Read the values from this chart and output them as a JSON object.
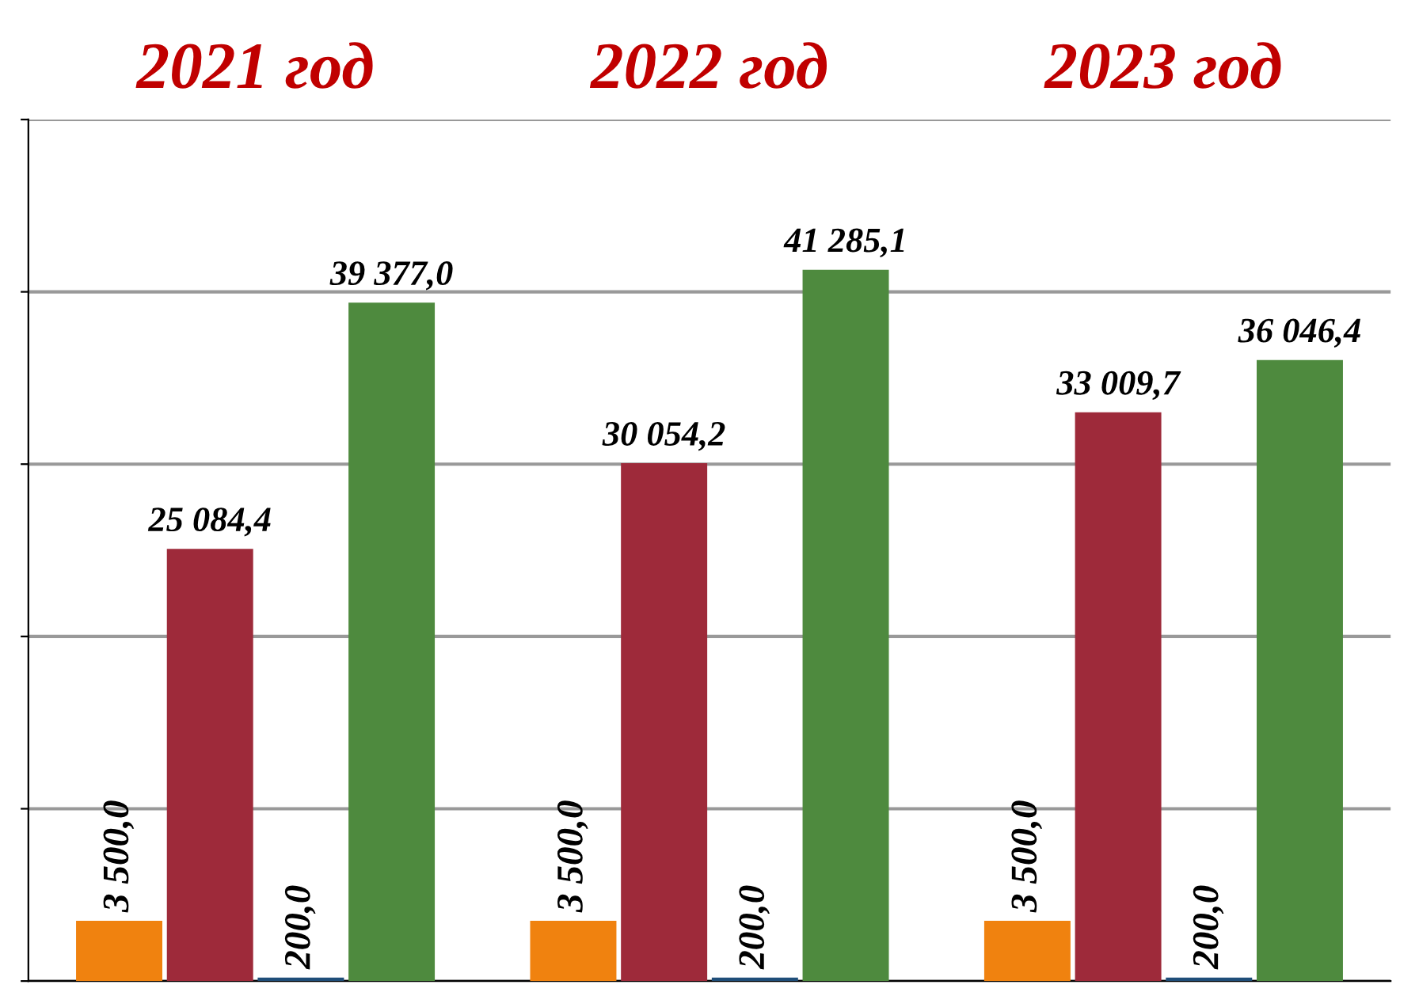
{
  "chart_data": {
    "type": "bar",
    "categories": [
      "2021 год",
      "2022 год",
      "2023 год"
    ],
    "series": [
      {
        "color": "#f0820f",
        "values": [
          3500.0,
          3500.0,
          3500.0
        ],
        "value_labels": [
          "3 500,0",
          "3 500,0",
          "3 500,0"
        ]
      },
      {
        "color": "#9e2a3a",
        "values": [
          25084.4,
          30054.2,
          33009.7
        ],
        "value_labels": [
          "25 084,4",
          "30 054,2",
          "33 009,7"
        ]
      },
      {
        "color": "#1f4e79",
        "values": [
          200.0,
          200.0,
          200.0
        ],
        "value_labels": [
          "200,0",
          "200,0",
          "200,0"
        ]
      },
      {
        "color": "#4e8a3e",
        "values": [
          39377.0,
          41285.1,
          36046.4
        ],
        "value_labels": [
          "39 377,0",
          "41 285,1",
          "36 046,4"
        ]
      }
    ],
    "ylim": [
      0,
      50000
    ],
    "yticks": [
      {
        "value": 0,
        "label": null
      },
      {
        "value": 10000,
        "label": null
      },
      {
        "value": 20000,
        "label": null
      },
      {
        "value": 30000,
        "label": null
      },
      {
        "value": 40000,
        "label": null
      },
      {
        "value": 50000,
        "label": null
      }
    ],
    "grid": "y",
    "legend": false
  }
}
